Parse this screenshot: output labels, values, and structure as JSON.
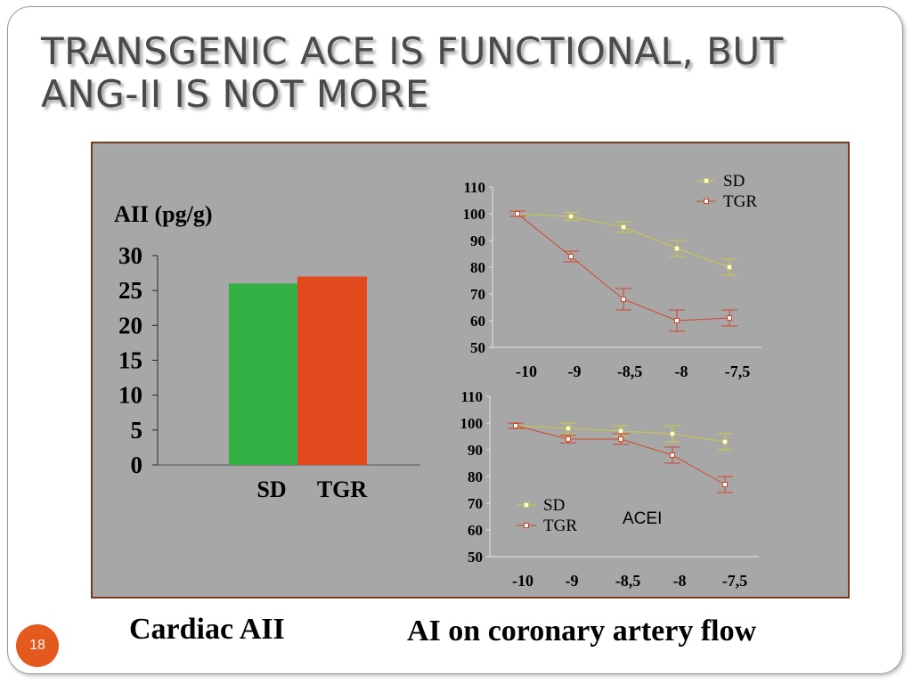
{
  "slide": {
    "title_line1": "TRANSGENIC ACE IS FUNCTIONAL, BUT",
    "title_line2": "ANG-II IS NOT MORE",
    "caption_left": "Cardiac AII",
    "caption_right": "AI on coronary artery flow",
    "page_number": "18",
    "accent_color": "#e45a1e",
    "panel_color": "#a7a7a7",
    "panel_border_color": "#7a3a22"
  },
  "chart_data": [
    {
      "type": "bar",
      "ylabel": "AII (pg/g)",
      "categories": [
        "SD",
        "TGR"
      ],
      "values": [
        26,
        27
      ],
      "colors": [
        "#32b043",
        "#e24a1d"
      ],
      "ylim": [
        0,
        30
      ],
      "yticks": [
        "0",
        "5",
        "10",
        "15",
        "20",
        "25",
        "30"
      ],
      "grid": false
    },
    {
      "type": "line",
      "x": [
        "-10",
        "-9",
        "-8,5",
        "-8",
        "-7,5"
      ],
      "ylim": [
        50,
        110
      ],
      "yticks": [
        "50",
        "60",
        "70",
        "80",
        "90",
        "100",
        "110"
      ],
      "legend_position": "top-right",
      "grid": false,
      "series": [
        {
          "name": "SD",
          "values": [
            100,
            99,
            95,
            87,
            80
          ],
          "errors": [
            1,
            1.5,
            2,
            3,
            3
          ],
          "color": "#c9c94a"
        },
        {
          "name": "TGR",
          "values": [
            100,
            84,
            68,
            60,
            61
          ],
          "errors": [
            1,
            2,
            4,
            4,
            3
          ],
          "color": "#d4442a"
        }
      ]
    },
    {
      "type": "line",
      "x": [
        "-10",
        "-9",
        "-8,5",
        "-8",
        "-7,5"
      ],
      "ylim": [
        50,
        110
      ],
      "yticks": [
        "50",
        "60",
        "70",
        "80",
        "90",
        "100",
        "110"
      ],
      "annotation": "ACEI",
      "legend_position": "bottom-left",
      "grid": false,
      "series": [
        {
          "name": "SD",
          "values": [
            99,
            98,
            97,
            96,
            93
          ],
          "errors": [
            1,
            2,
            2,
            3,
            3
          ],
          "color": "#c9c94a"
        },
        {
          "name": "TGR",
          "values": [
            99,
            94,
            94,
            88,
            77
          ],
          "errors": [
            1,
            1.5,
            2,
            3,
            3
          ],
          "color": "#d4442a"
        }
      ]
    }
  ]
}
